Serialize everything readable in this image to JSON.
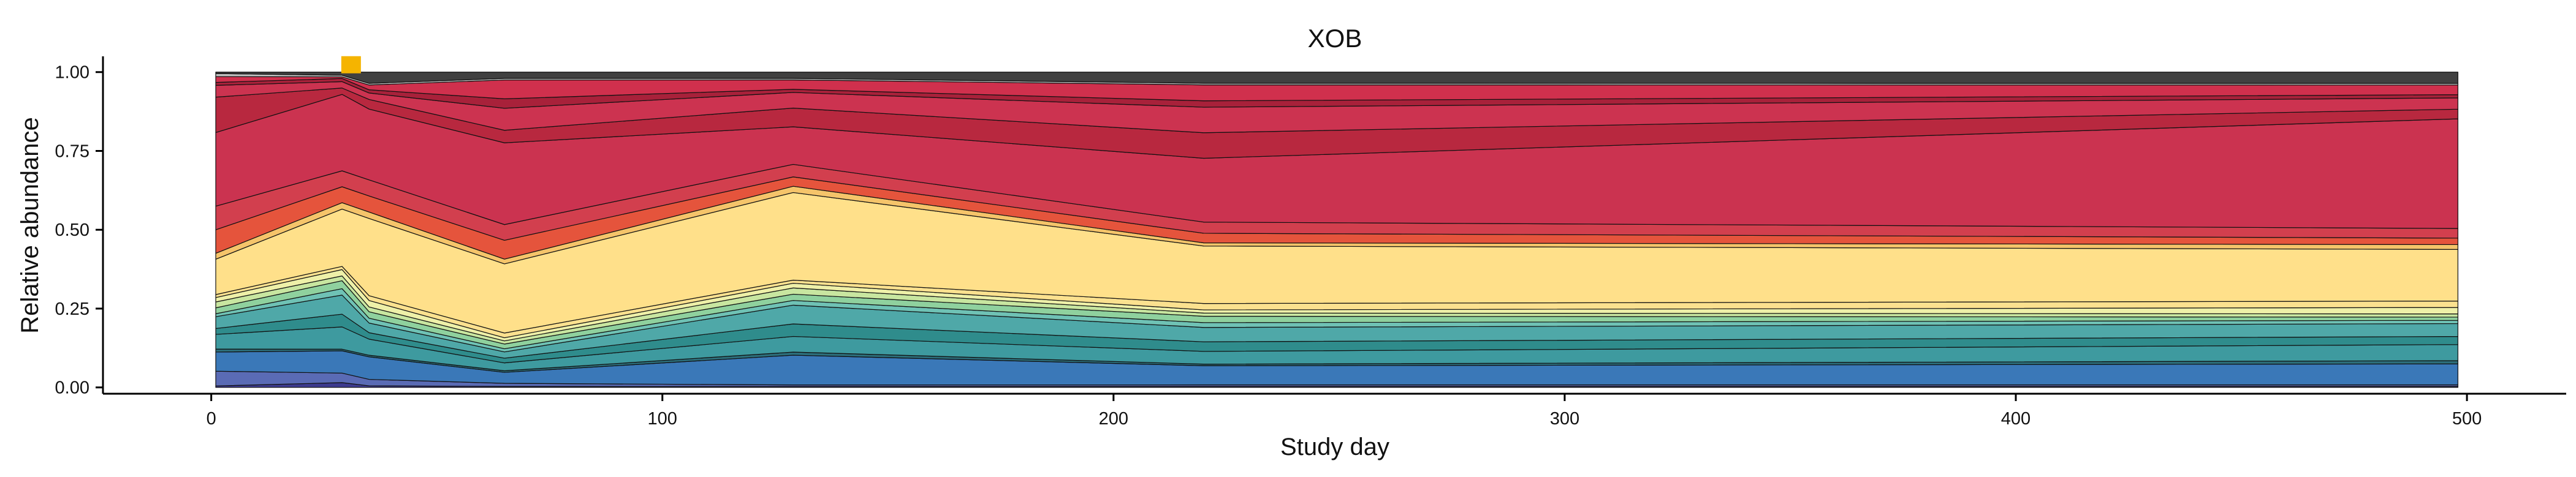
{
  "chart_data": {
    "type": "area",
    "title": "XOB",
    "xlabel": "Study day",
    "ylabel": "Relative abundance",
    "xlim": [
      -24,
      522
    ],
    "ylim": [
      -0.02,
      1.05
    ],
    "xticks": [
      0,
      100,
      200,
      300,
      400,
      500
    ],
    "yticks": [
      0.0,
      0.25,
      0.5,
      0.75,
      1.0
    ],
    "ytick_labels": [
      "0.00",
      "0.25",
      "0.50",
      "0.75",
      "1.00"
    ],
    "grid": false,
    "legend": "none",
    "x": [
      1,
      29,
      35,
      65,
      129,
      220,
      498
    ],
    "series": [
      {
        "color": "#3d3b8e",
        "values": [
          0.005,
          0.015,
          0.005,
          0.003,
          0.003,
          0.003,
          0.003
        ]
      },
      {
        "color": "#5a6bb5",
        "values": [
          0.05,
          0.03,
          0.02,
          0.01,
          0.005,
          0.005,
          0.005
        ]
      },
      {
        "color": "#3a78b8",
        "values": [
          0.065,
          0.07,
          0.07,
          0.035,
          0.095,
          0.06,
          0.065
        ]
      },
      {
        "color": "#2c6e7a",
        "values": [
          0.01,
          0.005,
          0.005,
          0.005,
          0.01,
          0.005,
          0.01
        ]
      },
      {
        "color": "#3e9a9f",
        "values": [
          0.05,
          0.07,
          0.05,
          0.025,
          0.05,
          0.04,
          0.05
        ]
      },
      {
        "color": "#2f8c8c",
        "values": [
          0.02,
          0.04,
          0.02,
          0.015,
          0.04,
          0.03,
          0.025
        ]
      },
      {
        "color": "#4fa8a8",
        "values": [
          0.04,
          0.06,
          0.03,
          0.02,
          0.06,
          0.045,
          0.04
        ]
      },
      {
        "color": "#6fc2b5",
        "values": [
          0.01,
          0.02,
          0.015,
          0.01,
          0.015,
          0.015,
          0.01
        ]
      },
      {
        "color": "#8fd19e",
        "values": [
          0.02,
          0.025,
          0.02,
          0.015,
          0.02,
          0.02,
          0.01
        ]
      },
      {
        "color": "#c8e6a0",
        "values": [
          0.02,
          0.015,
          0.015,
          0.01,
          0.02,
          0.01,
          0.01
        ]
      },
      {
        "color": "#eef0a8",
        "values": [
          0.015,
          0.02,
          0.02,
          0.01,
          0.015,
          0.01,
          0.02
        ]
      },
      {
        "color": "#fbe18f",
        "values": [
          0.01,
          0.01,
          0.015,
          0.015,
          0.01,
          0.02,
          0.02
        ]
      },
      {
        "color": "#ffe08a",
        "values": [
          0.12,
          0.18,
          0.24,
          0.22,
          0.28,
          0.18,
          0.16
        ]
      },
      {
        "color": "#f5c46a",
        "values": [
          0.02,
          0.02,
          0.02,
          0.015,
          0.02,
          0.01,
          0.015
        ]
      },
      {
        "color": "#e5543c",
        "values": [
          0.08,
          0.05,
          0.05,
          0.06,
          0.03,
          0.03,
          0.02
        ]
      },
      {
        "color": "#d23f4e",
        "values": [
          0.08,
          0.05,
          0.05,
          0.05,
          0.04,
          0.035,
          0.03
        ]
      },
      {
        "color": "#cb3350",
        "values": [
          0.25,
          0.24,
          0.22,
          0.26,
          0.12,
          0.2,
          0.34
        ]
      },
      {
        "color": "#b8283f",
        "values": [
          0.12,
          0.02,
          0.03,
          0.04,
          0.06,
          0.08,
          0.03
        ]
      },
      {
        "color": "#cc3350",
        "values": [
          0.04,
          0.02,
          0.02,
          0.07,
          0.05,
          0.08,
          0.035
        ]
      },
      {
        "color": "#a8213a",
        "values": [
          0.01,
          0.01,
          0.01,
          0.03,
          0.01,
          0.02,
          0.01
        ]
      },
      {
        "color": "#d0304d",
        "values": [
          0.02,
          0.005,
          0.015,
          0.06,
          0.03,
          0.05,
          0.03
        ]
      },
      {
        "color": "#c2c2c2",
        "values": [
          0.01,
          0.005,
          0.005,
          0.005,
          0.005,
          0.005,
          0.005
        ]
      },
      {
        "color": "#404040",
        "values": [
          0.005,
          0.01,
          0.035,
          0.02,
          0.02,
          0.035,
          0.035
        ]
      }
    ],
    "annotations": [
      {
        "type": "marker",
        "x": 31,
        "y": 1.0,
        "color": "#f5b400"
      }
    ]
  }
}
